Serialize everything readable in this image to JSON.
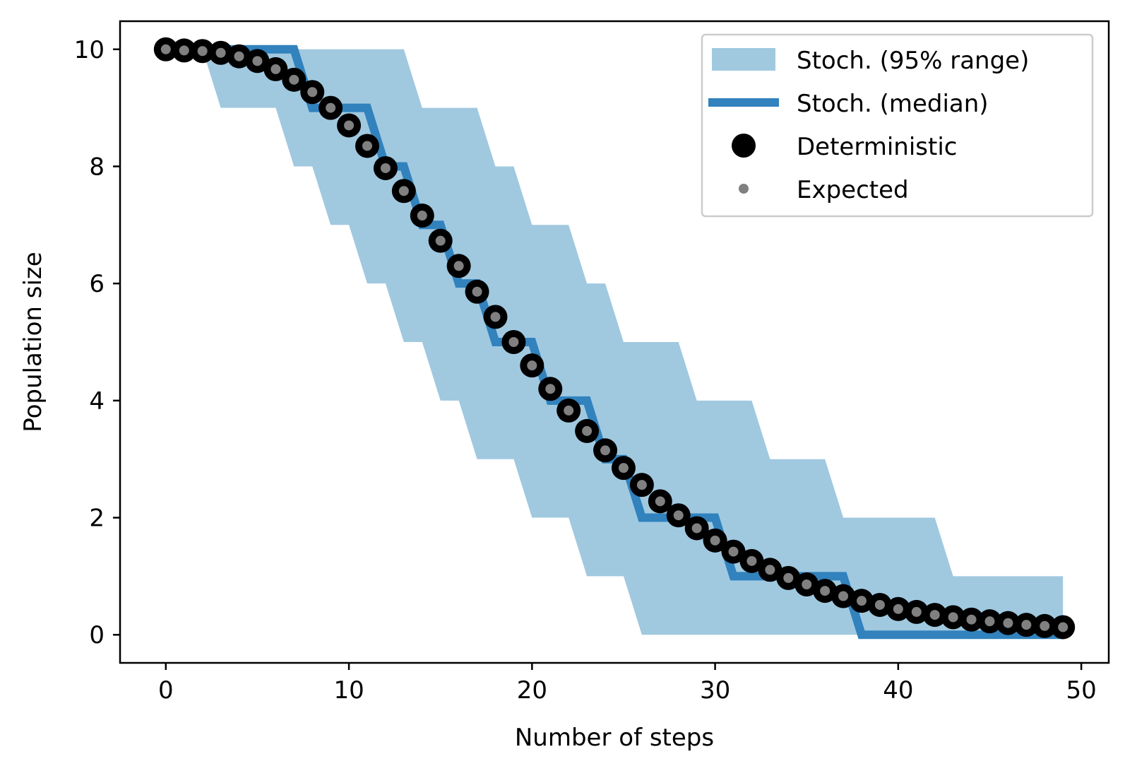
{
  "chart_data": {
    "type": "line",
    "title": "",
    "xlabel": "Number of steps",
    "ylabel": "Population size",
    "xlim": [
      -2.5,
      51.5
    ],
    "ylim": [
      -0.48,
      10.48
    ],
    "xticks": [
      0,
      10,
      20,
      30,
      40,
      50
    ],
    "xtick_labels": [
      "0",
      "10",
      "20",
      "30",
      "40",
      "50"
    ],
    "yticks": [
      0,
      2,
      4,
      6,
      8,
      10
    ],
    "ytick_labels": [
      "0",
      "2",
      "4",
      "6",
      "8",
      "10"
    ],
    "grid": false,
    "legend_position": "top-right",
    "series": [
      {
        "name": "Stoch. (95% range)",
        "kind": "band",
        "color": "#a0c9e0",
        "x": [
          2,
          3,
          4,
          5,
          6,
          7,
          8,
          9,
          10,
          11,
          12,
          13,
          14,
          15,
          16,
          17,
          18,
          19,
          20,
          21,
          22,
          23,
          24,
          25,
          26,
          27,
          28,
          29,
          30,
          31,
          32,
          33,
          34,
          35,
          36,
          37,
          38,
          39,
          40,
          41,
          42,
          43,
          44,
          45,
          46,
          47,
          48,
          49
        ],
        "lower": [
          10,
          9,
          9,
          9,
          9,
          8,
          8,
          7,
          7,
          6,
          6,
          5,
          5,
          4,
          4,
          3,
          3,
          3,
          2,
          2,
          2,
          1,
          1,
          1,
          0,
          0,
          0,
          0,
          0,
          0,
          0,
          0,
          0,
          0,
          0,
          0,
          0,
          0,
          0,
          0,
          0,
          0,
          0,
          0,
          0,
          0,
          0,
          0
        ],
        "upper": [
          10,
          10,
          10,
          10,
          10,
          10,
          10,
          10,
          10,
          10,
          10,
          10,
          9,
          9,
          9,
          9,
          8,
          8,
          7,
          7,
          7,
          6,
          6,
          5,
          5,
          5,
          5,
          4,
          4,
          4,
          4,
          3,
          3,
          3,
          3,
          2,
          2,
          2,
          2,
          2,
          2,
          1,
          1,
          1,
          1,
          1,
          1,
          1
        ]
      },
      {
        "name": "Stoch. (median)",
        "kind": "step-line",
        "color": "#3182bd",
        "x": [
          0,
          1,
          2,
          3,
          4,
          5,
          6,
          7,
          8,
          9,
          10,
          11,
          12,
          13,
          14,
          15,
          16,
          17,
          18,
          19,
          20,
          21,
          22,
          23,
          24,
          25,
          26,
          27,
          28,
          29,
          30,
          31,
          32,
          33,
          34,
          35,
          36,
          37,
          38,
          39,
          40,
          41,
          42,
          43,
          44,
          45,
          46,
          47,
          48,
          49
        ],
        "values": [
          10,
          10,
          10,
          10,
          10,
          10,
          10,
          10,
          9,
          9,
          9,
          9,
          8,
          8,
          7,
          7,
          6,
          6,
          5,
          5,
          5,
          4,
          4,
          4,
          3,
          3,
          2,
          2,
          2,
          2,
          2,
          1,
          1,
          1,
          1,
          1,
          1,
          1,
          0,
          0,
          0,
          0,
          0,
          0,
          0,
          0,
          0,
          0,
          0,
          0
        ]
      },
      {
        "name": "Deterministic",
        "kind": "markers",
        "color": "#000000",
        "x": [
          0,
          1,
          2,
          3,
          4,
          5,
          6,
          7,
          8,
          9,
          10,
          11,
          12,
          13,
          14,
          15,
          16,
          17,
          18,
          19,
          20,
          21,
          22,
          23,
          24,
          25,
          26,
          27,
          28,
          29,
          30,
          31,
          32,
          33,
          34,
          35,
          36,
          37,
          38,
          39,
          40,
          41,
          42,
          43,
          44,
          45,
          46,
          47,
          48,
          49
        ],
        "values": [
          10,
          9.98,
          9.97,
          9.94,
          9.88,
          9.8,
          9.66,
          9.48,
          9.27,
          9.0,
          8.7,
          8.35,
          7.97,
          7.58,
          7.16,
          6.73,
          6.3,
          5.86,
          5.43,
          5.0,
          4.6,
          4.2,
          3.83,
          3.48,
          3.15,
          2.85,
          2.56,
          2.28,
          2.04,
          1.82,
          1.61,
          1.42,
          1.26,
          1.11,
          0.97,
          0.86,
          0.75,
          0.66,
          0.58,
          0.51,
          0.44,
          0.39,
          0.34,
          0.3,
          0.26,
          0.23,
          0.2,
          0.17,
          0.15,
          0.13
        ]
      },
      {
        "name": "Expected",
        "kind": "markers",
        "color": "#808080",
        "x": [
          0,
          1,
          2,
          3,
          4,
          5,
          6,
          7,
          8,
          9,
          10,
          11,
          12,
          13,
          14,
          15,
          16,
          17,
          18,
          19,
          20,
          21,
          22,
          23,
          24,
          25,
          26,
          27,
          28,
          29,
          30,
          31,
          32,
          33,
          34,
          35,
          36,
          37,
          38,
          39,
          40,
          41,
          42,
          43,
          44,
          45,
          46,
          47,
          48,
          49
        ],
        "values": [
          10,
          9.98,
          9.97,
          9.94,
          9.88,
          9.8,
          9.66,
          9.48,
          9.27,
          9.0,
          8.7,
          8.35,
          7.97,
          7.58,
          7.16,
          6.73,
          6.3,
          5.86,
          5.43,
          5.0,
          4.6,
          4.2,
          3.83,
          3.48,
          3.15,
          2.85,
          2.56,
          2.28,
          2.04,
          1.82,
          1.61,
          1.42,
          1.26,
          1.11,
          0.97,
          0.86,
          0.75,
          0.66,
          0.58,
          0.51,
          0.44,
          0.39,
          0.34,
          0.3,
          0.26,
          0.23,
          0.2,
          0.17,
          0.15,
          0.13
        ]
      }
    ]
  }
}
